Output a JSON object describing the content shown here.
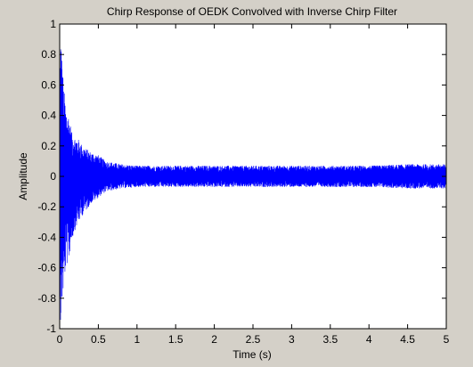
{
  "chart_data": {
    "type": "line",
    "title": "Chirp Response of OEDK Convolved with Inverse Chirp Filter",
    "xlabel": "Time (s)",
    "ylabel": "Amplitude",
    "xlim": [
      0,
      5
    ],
    "ylim": [
      -1,
      1
    ],
    "xticks": [
      0,
      0.5,
      1,
      1.5,
      2,
      2.5,
      3,
      3.5,
      4,
      4.5,
      5
    ],
    "xtick_labels": [
      "0",
      "0.5",
      "1",
      "1.5",
      "2",
      "2.5",
      "3",
      "3.5",
      "4",
      "4.5",
      "5"
    ],
    "yticks": [
      -1,
      -0.8,
      -0.6,
      -0.4,
      -0.2,
      0,
      0.2,
      0.4,
      0.6,
      0.8,
      1
    ],
    "ytick_labels": [
      "-1",
      "-0.8",
      "-0.6",
      "-0.4",
      "-0.2",
      "0",
      "0.2",
      "0.4",
      "0.6",
      "0.8",
      "1"
    ],
    "grid": false,
    "legend": false,
    "colors": {
      "line": "#0000ff",
      "plot_background": "#ffffff",
      "figure_background": "#d4d0c8",
      "axes": "#000000"
    },
    "series": [
      {
        "envelope": {
          "x": [
            0,
            0.01,
            0.03,
            0.05,
            0.08,
            0.12,
            0.16,
            0.2,
            0.25,
            0.3,
            0.35,
            0.4,
            0.5,
            0.6,
            0.7,
            0.8,
            1.0,
            1.5,
            2.0,
            3.0,
            4.0,
            4.5,
            5.0
          ],
          "upper": [
            0.5,
            0.98,
            0.8,
            0.6,
            0.45,
            0.4,
            0.28,
            0.26,
            0.24,
            0.2,
            0.18,
            0.16,
            0.14,
            0.1,
            0.09,
            0.08,
            0.07,
            0.07,
            0.07,
            0.07,
            0.07,
            0.08,
            0.08
          ],
          "lower": [
            -0.5,
            -1.0,
            -0.85,
            -0.75,
            -0.6,
            -0.55,
            -0.42,
            -0.35,
            -0.3,
            -0.25,
            -0.22,
            -0.18,
            -0.14,
            -0.1,
            -0.09,
            -0.08,
            -0.07,
            -0.07,
            -0.07,
            -0.07,
            -0.07,
            -0.08,
            -0.08
          ]
        }
      }
    ]
  }
}
